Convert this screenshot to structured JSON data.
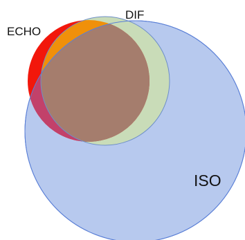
{
  "diagram": {
    "type": "venn",
    "sets": [
      {
        "id": "iso",
        "label": "ISO",
        "fill": "#b7c9ee",
        "stroke": "#5a7fd6"
      },
      {
        "id": "echo",
        "label": "ECHO",
        "fill": "#f2170b"
      },
      {
        "id": "dif",
        "label": "DIF",
        "fill": "#c9dcb8",
        "stroke": "#6e8fc8"
      }
    ],
    "overlap_colors": {
      "echo_dif": "#f0900a",
      "echo_iso": "#c2416a",
      "echo_dif_iso": "#a57d6d"
    }
  }
}
